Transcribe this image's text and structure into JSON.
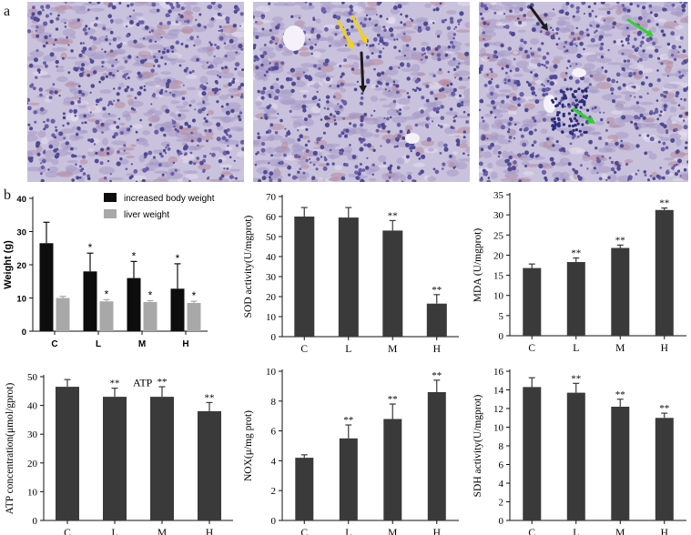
{
  "panel_labels": {
    "a": "a",
    "b": "b"
  },
  "micrographs": [
    {
      "arrows": []
    },
    {
      "arrows": [
        {
          "color": "#f2d21a",
          "from": [
            94,
            22
          ],
          "to": [
            110,
            52
          ]
        },
        {
          "color": "#f2d21a",
          "from": [
            109,
            16
          ],
          "to": [
            125,
            46
          ]
        },
        {
          "color": "#1a1a1a",
          "from": [
            119,
            56
          ],
          "to": [
            121,
            100
          ]
        }
      ]
    },
    {
      "arrows": [
        {
          "color": "#1a1a1a",
          "from": [
            57,
            6
          ],
          "to": [
            76,
            32
          ]
        },
        {
          "color": "#2fd12f",
          "from": [
            164,
            20
          ],
          "to": [
            192,
            38
          ]
        },
        {
          "color": "#2fd12f",
          "from": [
            104,
            118
          ],
          "to": [
            128,
            134
          ]
        }
      ]
    }
  ],
  "colors": {
    "bar_dark": "#3a3a3a",
    "bar_black": "#0d0d0d",
    "bar_grey": "#a8a8a8"
  },
  "chart_data": [
    {
      "id": "weight",
      "type": "bar",
      "ylabel": "Weight (g)",
      "categories": [
        "C",
        "L",
        "M",
        "H"
      ],
      "ylim": [
        0,
        40
      ],
      "yticks": [
        0,
        10,
        20,
        30,
        40
      ],
      "series": [
        {
          "name": "increased body weight",
          "values": [
            26.5,
            18,
            16,
            12.8
          ],
          "errors": [
            6.3,
            5.5,
            5,
            7.5
          ],
          "sig": [
            "",
            "*",
            "*",
            "*"
          ]
        },
        {
          "name": "liver weight",
          "values": [
            10,
            9,
            8.8,
            8.5
          ],
          "errors": [
            0.5,
            0.5,
            0.4,
            0.5
          ],
          "sig": [
            "",
            "*",
            "*",
            "*"
          ]
        }
      ],
      "legend": "top-right"
    },
    {
      "id": "sod",
      "type": "bar",
      "ylabel": "SOD activity(U/mgprot)",
      "categories": [
        "C",
        "L",
        "M",
        "H"
      ],
      "ylim": [
        0,
        70
      ],
      "yticks": [
        0,
        10,
        20,
        30,
        40,
        50,
        60,
        70
      ],
      "values": [
        60,
        59.5,
        53,
        16.5
      ],
      "errors": [
        4.5,
        5,
        5,
        4.5
      ],
      "sig": [
        "",
        "",
        "**",
        "**"
      ]
    },
    {
      "id": "mda",
      "type": "bar",
      "ylabel": "MDA (U/mgprot)",
      "categories": [
        "C",
        "L",
        "M",
        "H"
      ],
      "ylim": [
        0,
        35
      ],
      "yticks": [
        0,
        5,
        10,
        15,
        20,
        25,
        30,
        35
      ],
      "values": [
        16.8,
        18.3,
        21.8,
        31.2
      ],
      "errors": [
        1,
        1,
        0.7,
        0.5
      ],
      "sig": [
        "",
        "**",
        "**",
        "**"
      ]
    },
    {
      "id": "atp",
      "type": "bar",
      "ylabel": "ATP concentration(μmol/gprot)",
      "annotation": "ATP",
      "categories": [
        "C",
        "L",
        "M",
        "H"
      ],
      "ylim": [
        0,
        50
      ],
      "yticks": [
        0,
        10,
        20,
        30,
        40,
        50
      ],
      "values": [
        46.5,
        43,
        43,
        38
      ],
      "errors": [
        2.5,
        3,
        3.5,
        3
      ],
      "sig": [
        "",
        "**",
        "**",
        "**"
      ]
    },
    {
      "id": "nox",
      "type": "bar",
      "ylabel": "NOX(μ/mg prot)",
      "categories": [
        "C",
        "L",
        "M",
        "H"
      ],
      "ylim": [
        0,
        10
      ],
      "yticks": [
        0,
        2,
        4,
        6,
        8,
        10
      ],
      "values": [
        4.2,
        5.5,
        6.8,
        8.6
      ],
      "errors": [
        0.2,
        0.9,
        1,
        0.8
      ],
      "sig": [
        "",
        "**",
        "**",
        "**"
      ]
    },
    {
      "id": "sdh",
      "type": "bar",
      "ylabel": "SDH activity(U/mgprot)",
      "categories": [
        "C",
        "L",
        "M",
        "H"
      ],
      "ylim": [
        0,
        16
      ],
      "yticks": [
        0,
        2,
        4,
        6,
        8,
        10,
        12,
        14,
        16
      ],
      "values": [
        14.3,
        13.7,
        12.2,
        11
      ],
      "errors": [
        1,
        1,
        0.8,
        0.5
      ],
      "sig": [
        "",
        "**",
        "**",
        "**"
      ]
    }
  ]
}
